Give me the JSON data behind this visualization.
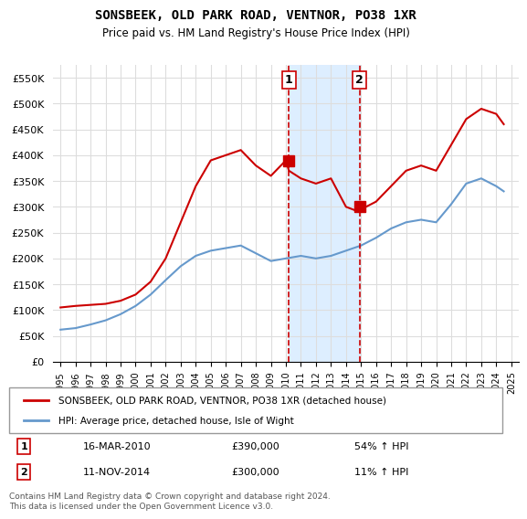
{
  "title": "SONSBEEK, OLD PARK ROAD, VENTNOR, PO38 1XR",
  "subtitle": "Price paid vs. HM Land Registry's House Price Index (HPI)",
  "ylabel_ticks": [
    "£0",
    "£50K",
    "£100K",
    "£150K",
    "£200K",
    "£250K",
    "£300K",
    "£350K",
    "£400K",
    "£450K",
    "£500K",
    "£550K"
  ],
  "ytick_values": [
    0,
    50000,
    100000,
    150000,
    200000,
    250000,
    300000,
    350000,
    400000,
    450000,
    500000,
    550000
  ],
  "ylim": [
    0,
    575000
  ],
  "xlim_start": 1994.5,
  "xlim_end": 2025.5,
  "red_line_years": [
    1995,
    1996,
    1997,
    1998,
    1999,
    2000,
    2001,
    2002,
    2003,
    2004,
    2005,
    2006,
    2007,
    2008,
    2009,
    2010,
    2010.2,
    2011,
    2012,
    2013,
    2014,
    2014.9,
    2015,
    2016,
    2017,
    2018,
    2019,
    2020,
    2021,
    2022,
    2023,
    2024,
    2024.5
  ],
  "red_line_values": [
    105000,
    108000,
    110000,
    112000,
    118000,
    130000,
    155000,
    200000,
    270000,
    340000,
    390000,
    400000,
    410000,
    380000,
    360000,
    390000,
    370000,
    355000,
    345000,
    355000,
    300000,
    290000,
    295000,
    310000,
    340000,
    370000,
    380000,
    370000,
    420000,
    470000,
    490000,
    480000,
    460000
  ],
  "blue_line_years": [
    1995,
    1996,
    1997,
    1998,
    1999,
    2000,
    2001,
    2002,
    2003,
    2004,
    2005,
    2006,
    2007,
    2008,
    2009,
    2010,
    2011,
    2012,
    2013,
    2014,
    2015,
    2016,
    2017,
    2018,
    2019,
    2020,
    2021,
    2022,
    2023,
    2024,
    2024.5
  ],
  "blue_line_values": [
    62000,
    65000,
    72000,
    80000,
    92000,
    108000,
    130000,
    158000,
    185000,
    205000,
    215000,
    220000,
    225000,
    210000,
    195000,
    200000,
    205000,
    200000,
    205000,
    215000,
    225000,
    240000,
    258000,
    270000,
    275000,
    270000,
    305000,
    345000,
    355000,
    340000,
    330000
  ],
  "event1_x": 2010.2,
  "event1_y": 390000,
  "event2_x": 2014.9,
  "event2_y": 300000,
  "event1_label": "1",
  "event2_label": "2",
  "vline1_x": 2010.2,
  "vline2_x": 2014.9,
  "legend_red": "SONSBEEK, OLD PARK ROAD, VENTNOR, PO38 1XR (detached house)",
  "legend_blue": "HPI: Average price, detached house, Isle of Wight",
  "ann1_num": "1",
  "ann1_date": "16-MAR-2010",
  "ann1_price": "£390,000",
  "ann1_hpi": "54% ↑ HPI",
  "ann2_num": "2",
  "ann2_date": "11-NOV-2014",
  "ann2_price": "£300,000",
  "ann2_hpi": "11% ↑ HPI",
  "footer": "Contains HM Land Registry data © Crown copyright and database right 2024.\nThis data is licensed under the Open Government Licence v3.0.",
  "red_color": "#cc0000",
  "blue_color": "#6699cc",
  "shade_color": "#ddeeff",
  "background_color": "#ffffff",
  "grid_color": "#dddddd"
}
